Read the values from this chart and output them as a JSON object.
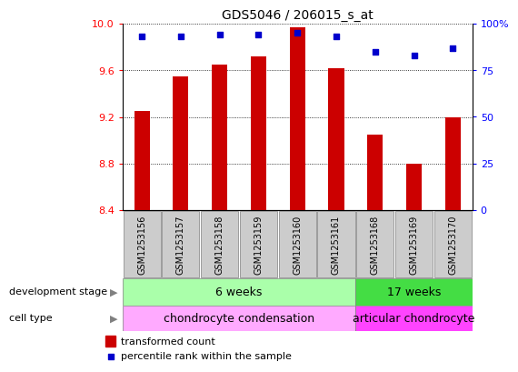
{
  "title": "GDS5046 / 206015_s_at",
  "samples": [
    "GSM1253156",
    "GSM1253157",
    "GSM1253158",
    "GSM1253159",
    "GSM1253160",
    "GSM1253161",
    "GSM1253168",
    "GSM1253169",
    "GSM1253170"
  ],
  "transformed_counts": [
    9.25,
    9.55,
    9.65,
    9.72,
    9.97,
    9.62,
    9.05,
    8.8,
    9.2
  ],
  "percentile_ranks": [
    93,
    93,
    94,
    94,
    95,
    93,
    85,
    83,
    87
  ],
  "ylim_left": [
    8.4,
    10.0
  ],
  "ylim_right": [
    0,
    100
  ],
  "yticks_left": [
    8.4,
    8.8,
    9.2,
    9.6,
    10.0
  ],
  "yticks_right": [
    0,
    25,
    50,
    75,
    100
  ],
  "bar_color": "#cc0000",
  "scatter_color": "#0000cc",
  "bar_bottom": 8.4,
  "dev_stage_6weeks": "6 weeks",
  "dev_stage_17weeks": "17 weeks",
  "cell_type_chondro": "chondrocyte condensation",
  "cell_type_articular": "articular chondrocyte",
  "dev_stage_label": "development stage",
  "cell_type_label": "cell type",
  "legend_bar": "transformed count",
  "legend_scatter": "percentile rank within the sample",
  "group1_count": 6,
  "group2_count": 3,
  "color_6weeks": "#aaffaa",
  "color_17weeks": "#44dd44",
  "color_chondro": "#ffaaff",
  "color_articular": "#ff44ff",
  "bg_color": "#ffffff",
  "tick_label_bg": "#cccccc",
  "bar_width": 0.4
}
